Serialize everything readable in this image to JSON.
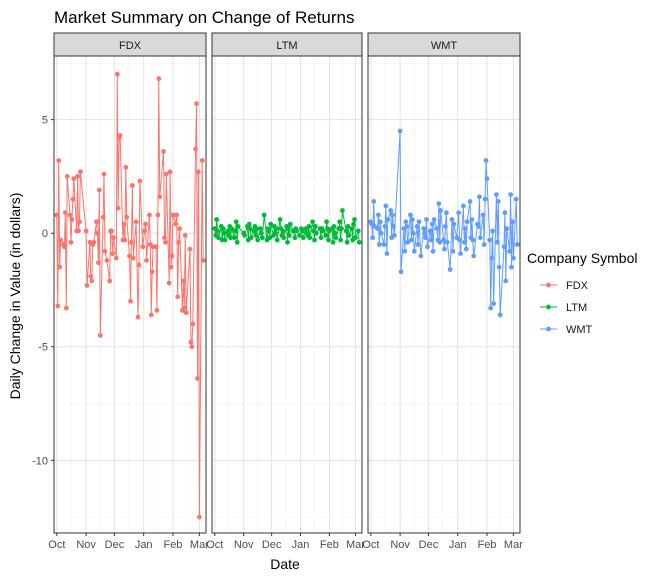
{
  "chart_data": {
    "type": "line",
    "title": "Market Summary on Change of Returns",
    "xlabel": "Date",
    "ylabel": "Daily Change in Value (in dollars)",
    "x_ticks": [
      "Oct",
      "Nov",
      "Dec",
      "Jan",
      "Feb",
      "Mar"
    ],
    "x_range": [
      "2012-09-28",
      "2013-03-08"
    ],
    "y_ticks": [
      5,
      0,
      -5,
      -10
    ],
    "ylim": [
      -13.2,
      7.8
    ],
    "grid": true,
    "legend": {
      "title": "Company Symbol",
      "position": "right"
    },
    "facets": [
      {
        "label": "FDX",
        "color": "#F8766D",
        "series": "FDX"
      },
      {
        "label": "LTM",
        "color": "#00BA38",
        "series": "LTM"
      },
      {
        "label": "WMT",
        "color": "#619CFF",
        "series": "WMT"
      }
    ],
    "series": [
      {
        "name": "FDX",
        "color": "#F8766D",
        "x": [
          "2012-10-01",
          "2012-10-02",
          "2012-10-03",
          "2012-10-04",
          "2012-10-05",
          "2012-10-08",
          "2012-10-09",
          "2012-10-10",
          "2012-10-11",
          "2012-10-12",
          "2012-10-15",
          "2012-10-16",
          "2012-10-17",
          "2012-10-18",
          "2012-10-19",
          "2012-10-22",
          "2012-10-23",
          "2012-10-24",
          "2012-10-25",
          "2012-10-26",
          "2012-11-01",
          "2012-11-02",
          "2012-11-05",
          "2012-11-06",
          "2012-11-07",
          "2012-11-08",
          "2012-11-09",
          "2012-11-12",
          "2012-11-13",
          "2012-11-14",
          "2012-11-15",
          "2012-11-16",
          "2012-11-19",
          "2012-11-20",
          "2012-11-21",
          "2012-11-23",
          "2012-11-26",
          "2012-11-27",
          "2012-11-28",
          "2012-11-29",
          "2012-11-30",
          "2012-12-03",
          "2012-12-04",
          "2012-12-05",
          "2012-12-06",
          "2012-12-07",
          "2012-12-10",
          "2012-12-11",
          "2012-12-12",
          "2012-12-13",
          "2012-12-14",
          "2012-12-17",
          "2012-12-18",
          "2012-12-19",
          "2012-12-20",
          "2012-12-21",
          "2012-12-24",
          "2012-12-26",
          "2012-12-27",
          "2012-12-28",
          "2012-12-31",
          "2013-01-02",
          "2013-01-03",
          "2013-01-04",
          "2013-01-07",
          "2013-01-08",
          "2013-01-09",
          "2013-01-10",
          "2013-01-11",
          "2013-01-14",
          "2013-01-15",
          "2013-01-16",
          "2013-01-17",
          "2013-01-18",
          "2013-01-22",
          "2013-01-23",
          "2013-01-24",
          "2013-01-25",
          "2013-01-28",
          "2013-01-29",
          "2013-01-30",
          "2013-01-31",
          "2013-02-01",
          "2013-02-04",
          "2013-02-05",
          "2013-02-06",
          "2013-02-07",
          "2013-02-08",
          "2013-02-11",
          "2013-02-12",
          "2013-02-13",
          "2013-02-14",
          "2013-02-15",
          "2013-02-19",
          "2013-02-20",
          "2013-02-21",
          "2013-02-22",
          "2013-02-25",
          "2013-02-26",
          "2013-02-27",
          "2013-02-28",
          "2013-03-01",
          "2013-03-04",
          "2013-03-05"
        ],
        "values": [
          0.8,
          -3.2,
          3.2,
          -1.5,
          -0.3,
          -0.5,
          -0.6,
          0.9,
          -3.3,
          2.5,
          0.8,
          -0.4,
          0.6,
          1.5,
          2.4,
          0.1,
          2.5,
          0.1,
          0.5,
          2.7,
          0.1,
          -2.3,
          -0.4,
          -1.9,
          -2.1,
          -0.5,
          -0.4,
          0.5,
          0.0,
          -1.3,
          1.9,
          -4.5,
          0.7,
          2.6,
          -0.8,
          -1.2,
          -2.1,
          0.1,
          0.1,
          -0.9,
          -0.2,
          -1.1,
          7.0,
          1.1,
          4.2,
          4.3,
          -0.3,
          0.4,
          -0.3,
          2.9,
          0.7,
          -1.0,
          -3.0,
          -0.4,
          2.1,
          -1.1,
          0.5,
          -3.7,
          -1.4,
          2.3,
          -0.6,
          0.1,
          0.4,
          -1.2,
          0.8,
          -0.5,
          -3.6,
          -1.7,
          -0.6,
          -0.6,
          -3.4,
          0.8,
          6.8,
          1.6,
          3.6,
          -0.2,
          -0.4,
          2.6,
          -2.2,
          2.7,
          -1.5,
          -1.0,
          0.8,
          0.4,
          0.8,
          -2.8,
          -0.4,
          0.2,
          -3.4,
          -2.1,
          -3.3,
          -0.1,
          -3.5,
          -0.7,
          -4.8,
          -5.0,
          -4.0,
          3.7,
          5.7,
          -6.4,
          2.7,
          -12.5,
          3.2,
          -1.2
        ]
      },
      {
        "name": "LTM",
        "color": "#00BA38",
        "x": [
          "2012-10-01",
          "2012-10-02",
          "2012-10-03",
          "2012-10-04",
          "2012-10-05",
          "2012-10-08",
          "2012-10-09",
          "2012-10-10",
          "2012-10-11",
          "2012-10-12",
          "2012-10-15",
          "2012-10-16",
          "2012-10-17",
          "2012-10-18",
          "2012-10-19",
          "2012-10-22",
          "2012-10-23",
          "2012-10-24",
          "2012-10-25",
          "2012-10-26",
          "2012-11-01",
          "2012-11-02",
          "2012-11-05",
          "2012-11-06",
          "2012-11-07",
          "2012-11-08",
          "2012-11-09",
          "2012-11-12",
          "2012-11-13",
          "2012-11-14",
          "2012-11-15",
          "2012-11-16",
          "2012-11-19",
          "2012-11-20",
          "2012-11-21",
          "2012-11-23",
          "2012-11-26",
          "2012-11-27",
          "2012-11-28",
          "2012-11-29",
          "2012-11-30",
          "2012-12-03",
          "2012-12-04",
          "2012-12-05",
          "2012-12-06",
          "2012-12-07",
          "2012-12-10",
          "2012-12-11",
          "2012-12-12",
          "2012-12-13",
          "2012-12-14",
          "2012-12-17",
          "2012-12-18",
          "2012-12-19",
          "2012-12-20",
          "2012-12-21",
          "2012-12-24",
          "2012-12-26",
          "2012-12-27",
          "2012-12-28",
          "2012-12-31",
          "2013-01-02",
          "2013-01-03",
          "2013-01-04",
          "2013-01-07",
          "2013-01-08",
          "2013-01-09",
          "2013-01-10",
          "2013-01-11",
          "2013-01-14",
          "2013-01-15",
          "2013-01-16",
          "2013-01-17",
          "2013-01-18",
          "2013-01-22",
          "2013-01-23",
          "2013-01-24",
          "2013-01-25",
          "2013-01-28",
          "2013-01-29",
          "2013-01-30",
          "2013-01-31",
          "2013-02-01",
          "2013-02-04",
          "2013-02-05",
          "2013-02-06",
          "2013-02-07",
          "2013-02-08",
          "2013-02-11",
          "2013-02-12",
          "2013-02-13",
          "2013-02-14",
          "2013-02-15",
          "2013-02-19",
          "2013-02-20",
          "2013-02-21",
          "2013-02-22",
          "2013-02-25",
          "2013-02-26",
          "2013-02-27",
          "2013-02-28",
          "2013-03-01",
          "2013-03-04",
          "2013-03-05"
        ],
        "values": [
          0.2,
          -0.1,
          0.6,
          0.1,
          -0.2,
          0.3,
          -0.3,
          0.2,
          0.0,
          -0.3,
          0.1,
          -0.1,
          0.3,
          -0.2,
          0.2,
          -0.2,
          0.1,
          0.5,
          -0.4,
          0.3,
          0.0,
          -0.1,
          0.3,
          -0.3,
          0.4,
          0.2,
          -0.2,
          0.1,
          0.3,
          -0.1,
          0.2,
          -0.3,
          0.2,
          0.0,
          -0.2,
          0.8,
          -0.3,
          0.2,
          0.1,
          -0.2,
          0.4,
          -0.1,
          0.3,
          0.0,
          0.2,
          -0.3,
          0.6,
          0.2,
          -0.1,
          0.1,
          -0.2,
          0.3,
          -0.4,
          0.2,
          -0.1,
          0.4,
          0.1,
          -0.2,
          0.2,
          0.1,
          -0.1,
          0.2,
          0.1,
          -0.2,
          0.2,
          0.0,
          -0.1,
          0.3,
          -0.2,
          0.5,
          0.1,
          -0.3,
          0.3,
          0.0,
          0.2,
          -0.2,
          0.2,
          0.1,
          -0.1,
          0.5,
          0.2,
          -0.3,
          0.1,
          0.2,
          -0.4,
          0.3,
          0.0,
          -0.2,
          0.2,
          0.5,
          -0.3,
          0.2,
          1.0,
          0.1,
          -0.4,
          0.3,
          -0.1,
          0.2,
          -0.3,
          0.4,
          0.6,
          -0.2,
          0.1,
          -0.4
        ]
      },
      {
        "name": "WMT",
        "color": "#619CFF",
        "x": [
          "2012-10-01",
          "2012-10-02",
          "2012-10-03",
          "2012-10-04",
          "2012-10-05",
          "2012-10-08",
          "2012-10-09",
          "2012-10-10",
          "2012-10-11",
          "2012-10-12",
          "2012-10-15",
          "2012-10-16",
          "2012-10-17",
          "2012-10-18",
          "2012-10-19",
          "2012-10-22",
          "2012-10-23",
          "2012-10-24",
          "2012-10-25",
          "2012-10-26",
          "2012-11-01",
          "2012-11-02",
          "2012-11-05",
          "2012-11-06",
          "2012-11-07",
          "2012-11-08",
          "2012-11-09",
          "2012-11-12",
          "2012-11-13",
          "2012-11-14",
          "2012-11-15",
          "2012-11-16",
          "2012-11-19",
          "2012-11-20",
          "2012-11-21",
          "2012-11-23",
          "2012-11-26",
          "2012-11-27",
          "2012-11-28",
          "2012-11-29",
          "2012-11-30",
          "2012-12-03",
          "2012-12-04",
          "2012-12-05",
          "2012-12-06",
          "2012-12-07",
          "2012-12-10",
          "2012-12-11",
          "2012-12-12",
          "2012-12-13",
          "2012-12-14",
          "2012-12-17",
          "2012-12-18",
          "2012-12-19",
          "2012-12-20",
          "2012-12-21",
          "2012-12-24",
          "2012-12-26",
          "2012-12-27",
          "2012-12-28",
          "2012-12-31",
          "2013-01-02",
          "2013-01-03",
          "2013-01-04",
          "2013-01-07",
          "2013-01-08",
          "2013-01-09",
          "2013-01-10",
          "2013-01-11",
          "2013-01-14",
          "2013-01-15",
          "2013-01-16",
          "2013-01-17",
          "2013-01-18",
          "2013-01-22",
          "2013-01-23",
          "2013-01-24",
          "2013-01-25",
          "2013-01-28",
          "2013-01-29",
          "2013-01-30",
          "2013-01-31",
          "2013-02-01",
          "2013-02-04",
          "2013-02-05",
          "2013-02-06",
          "2013-02-07",
          "2013-02-08",
          "2013-02-11",
          "2013-02-12",
          "2013-02-13",
          "2013-02-14",
          "2013-02-15",
          "2013-02-19",
          "2013-02-20",
          "2013-02-21",
          "2013-02-22",
          "2013-02-25",
          "2013-02-26",
          "2013-02-27",
          "2013-02-28",
          "2013-03-01",
          "2013-03-04",
          "2013-03-05"
        ],
        "values": [
          0.5,
          0.4,
          -0.2,
          1.4,
          0.3,
          0.2,
          0.8,
          -0.5,
          0.5,
          0.0,
          -0.5,
          0.3,
          1.2,
          -0.9,
          0.6,
          1.0,
          -0.2,
          0.8,
          0.3,
          -0.1,
          4.5,
          -1.7,
          0.2,
          -0.8,
          0.5,
          0.3,
          -0.4,
          0.8,
          -0.3,
          0.6,
          0.0,
          -0.8,
          0.3,
          -0.5,
          0.5,
          -1.0,
          0.2,
          0.0,
          -0.2,
          0.6,
          -0.6,
          0.1,
          -0.3,
          0.4,
          -0.8,
          0.6,
          0.2,
          -0.3,
          1.3,
          -0.4,
          1.0,
          -0.3,
          -0.7,
          0.3,
          0.9,
          -0.4,
          -1.6,
          0.6,
          -0.8,
          0.4,
          -0.2,
          0.9,
          -0.3,
          -0.9,
          1.2,
          -0.4,
          0.2,
          -0.7,
          0.5,
          1.4,
          -0.2,
          0.6,
          -0.3,
          -1.0,
          0.4,
          0.3,
          1.6,
          -0.2,
          0.8,
          -0.5,
          1.5,
          3.2,
          2.4,
          -0.3,
          -3.3,
          -1.1,
          0.1,
          -3.1,
          1.7,
          -0.4,
          1.4,
          -1.5,
          -3.6,
          -0.6,
          0.9,
          -2.1,
          0.2,
          -0.8,
          1.7,
          -1.5,
          0.5,
          -1.1,
          1.5,
          -0.5
        ]
      }
    ]
  }
}
